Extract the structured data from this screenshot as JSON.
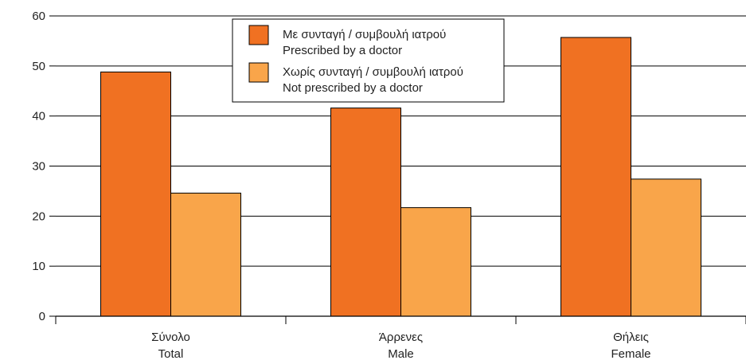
{
  "chart_data": {
    "type": "bar",
    "categories": [
      {
        "primary": "Σύνολο",
        "secondary": "Total"
      },
      {
        "primary": "Άρρενες",
        "secondary": "Male"
      },
      {
        "primary": "Θήλεις",
        "secondary": "Female"
      }
    ],
    "series": [
      {
        "name_primary": "Με συνταγή / συμβουλή ιατρού",
        "name_secondary": "Prescribed by a doctor",
        "color": "#f07122",
        "values": [
          48.8,
          41.6,
          55.7
        ]
      },
      {
        "name_primary": "Χωρίς συνταγή / συμβουλή ιατρού",
        "name_secondary": "Not prescribed by a doctor",
        "color": "#f9a54a",
        "values": [
          24.6,
          21.7,
          27.4
        ]
      }
    ],
    "ylim": [
      0,
      60
    ],
    "yticks": [
      "0",
      "10",
      "20",
      "30",
      "40",
      "50",
      "60"
    ],
    "grid": true,
    "legend_position": "top-center"
  }
}
